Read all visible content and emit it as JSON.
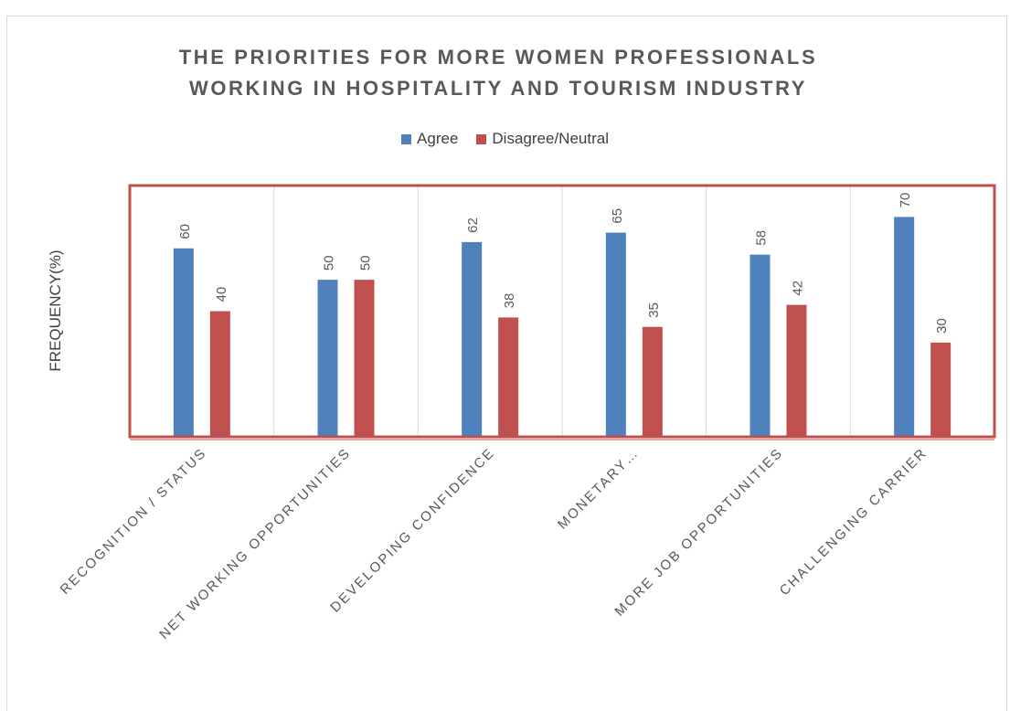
{
  "chart_data": {
    "type": "bar",
    "title_lines": [
      "THE PRIORITIES FOR MORE WOMEN PROFESSIONALS",
      "WORKING IN HOSPITALITY AND TOURISM INDUSTRY"
    ],
    "ylabel": "FREQUENCY(%)",
    "xlabel": "",
    "categories": [
      "RECOGNITION / STATUS",
      "NET WORKING OPPORTUNITIES",
      "DEVELOPING CONFIDENCE",
      "MONETARY…",
      "MORE JOB OPPORTUNITIES",
      "CHALLENGING CARRIER"
    ],
    "series": [
      {
        "name": "Agree",
        "values": [
          60,
          50,
          62,
          65,
          58,
          70
        ],
        "color": "#4f81bd"
      },
      {
        "name": "Disagree/Neutral",
        "values": [
          40,
          50,
          38,
          35,
          42,
          30
        ],
        "color": "#c0504d"
      }
    ],
    "ylim": [
      0,
      80
    ],
    "legend_position": "top",
    "grid": "vertical-category-separators",
    "data_labels": true,
    "plot_border_color": "#c0504d"
  }
}
